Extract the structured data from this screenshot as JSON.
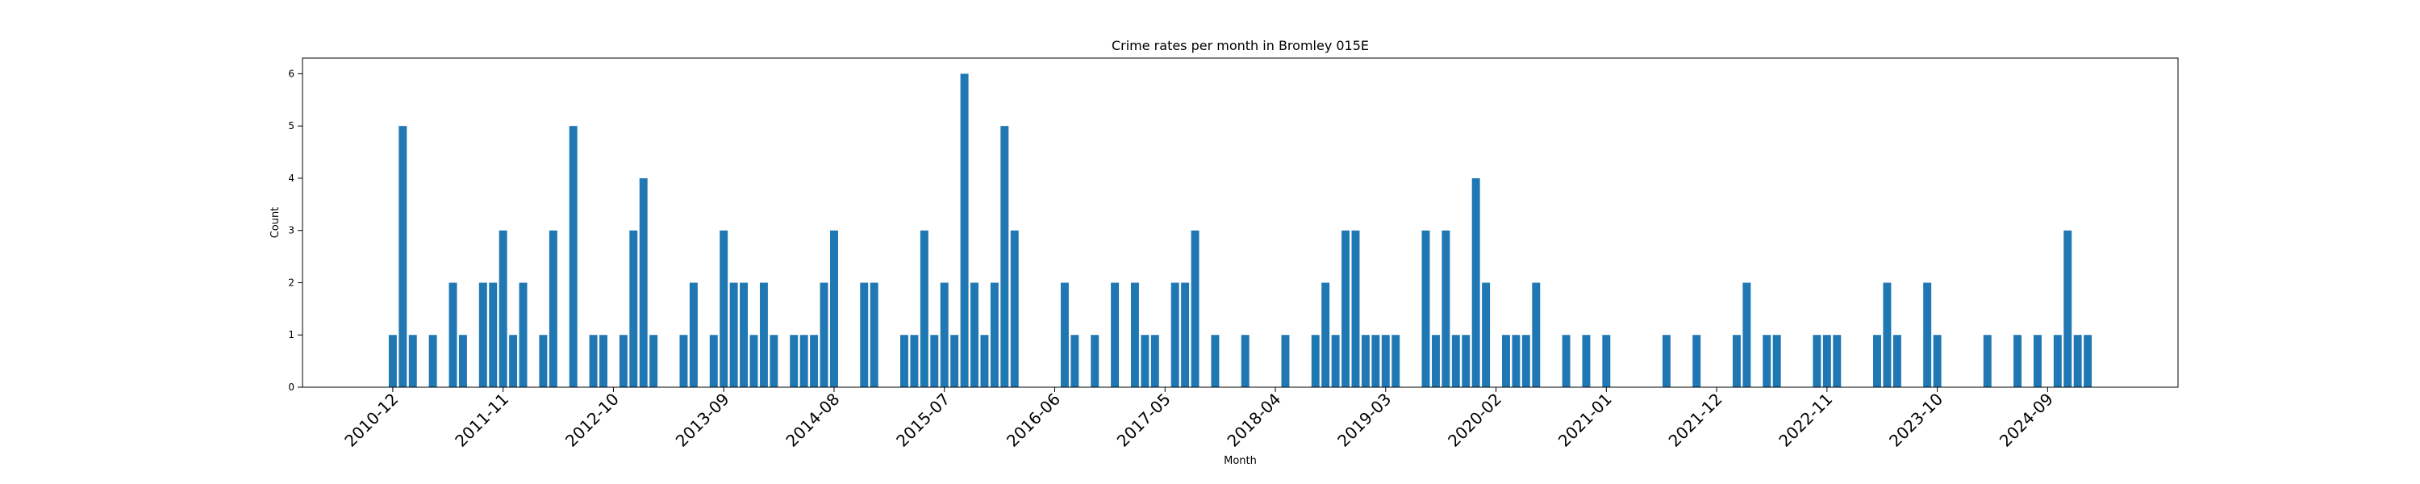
{
  "chart_data": {
    "type": "bar",
    "title": "Crime rates per month in Bromley 015E",
    "xlabel": "Month",
    "ylabel": "Count",
    "ylim": [
      0,
      6.3
    ],
    "yticks": [
      0,
      1,
      2,
      3,
      4,
      5,
      6
    ],
    "xticks": [
      "2010-12",
      "2011-11",
      "2012-10",
      "2013-09",
      "2014-08",
      "2015-07",
      "2016-06",
      "2017-05",
      "2018-04",
      "2019-03",
      "2020-02",
      "2021-01",
      "2021-12",
      "2022-11",
      "2023-10",
      "2024-09"
    ],
    "grid": false,
    "color": "#1f77b4",
    "series": [
      {
        "x": [
          "2010-12",
          "2011-01",
          "2011-02",
          "2011-04",
          "2011-06",
          "2011-07",
          "2011-09",
          "2011-10",
          "2011-11",
          "2011-12",
          "2012-01",
          "2012-03",
          "2012-04",
          "2012-06",
          "2012-08",
          "2012-09",
          "2012-11",
          "2012-12",
          "2013-01",
          "2013-02",
          "2013-05",
          "2013-06",
          "2013-08",
          "2013-09",
          "2013-10",
          "2013-11",
          "2013-12",
          "2014-01",
          "2014-02",
          "2014-04",
          "2014-05",
          "2014-06",
          "2014-07",
          "2014-08",
          "2014-11",
          "2014-12",
          "2015-03",
          "2015-04",
          "2015-05",
          "2015-06",
          "2015-07",
          "2015-08",
          "2015-09",
          "2015-10",
          "2015-11",
          "2015-12",
          "2016-01",
          "2016-02",
          "2016-07",
          "2016-08",
          "2016-10",
          "2016-12",
          "2017-02",
          "2017-03",
          "2017-04",
          "2017-06",
          "2017-07",
          "2017-08",
          "2017-10",
          "2018-01",
          "2018-05",
          "2018-08",
          "2018-09",
          "2018-10",
          "2018-11",
          "2018-12",
          "2019-01",
          "2019-02",
          "2019-03",
          "2019-04",
          "2019-07",
          "2019-08",
          "2019-09",
          "2019-10",
          "2019-11",
          "2019-12",
          "2020-01",
          "2020-03",
          "2020-04",
          "2020-05",
          "2020-06",
          "2020-09",
          "2020-11",
          "2021-01",
          "2021-07",
          "2021-10",
          "2022-02",
          "2022-03",
          "2022-05",
          "2022-06",
          "2022-10",
          "2022-11",
          "2022-12",
          "2023-04",
          "2023-05",
          "2023-06",
          "2023-09",
          "2023-10",
          "2024-03",
          "2024-06",
          "2024-08",
          "2024-10",
          "2024-11",
          "2024-12",
          "2025-01"
        ],
        "values": [
          1,
          5,
          1,
          1,
          2,
          1,
          2,
          2,
          3,
          1,
          2,
          1,
          3,
          5,
          1,
          1,
          1,
          3,
          4,
          1,
          1,
          2,
          1,
          3,
          2,
          2,
          1,
          2,
          1,
          1,
          1,
          1,
          2,
          3,
          2,
          2,
          1,
          1,
          3,
          1,
          2,
          1,
          6,
          2,
          1,
          2,
          5,
          3,
          2,
          1,
          1,
          2,
          2,
          1,
          1,
          2,
          2,
          3,
          1,
          1,
          1,
          1,
          2,
          1,
          3,
          3,
          1,
          1,
          1,
          1,
          3,
          1,
          3,
          1,
          1,
          4,
          2,
          1,
          1,
          1,
          2,
          1,
          1,
          1,
          1,
          1,
          1,
          2,
          1,
          1,
          1,
          1,
          1,
          1,
          2,
          1,
          2,
          1,
          1,
          1,
          1,
          1,
          3,
          1,
          1
        ]
      }
    ]
  }
}
